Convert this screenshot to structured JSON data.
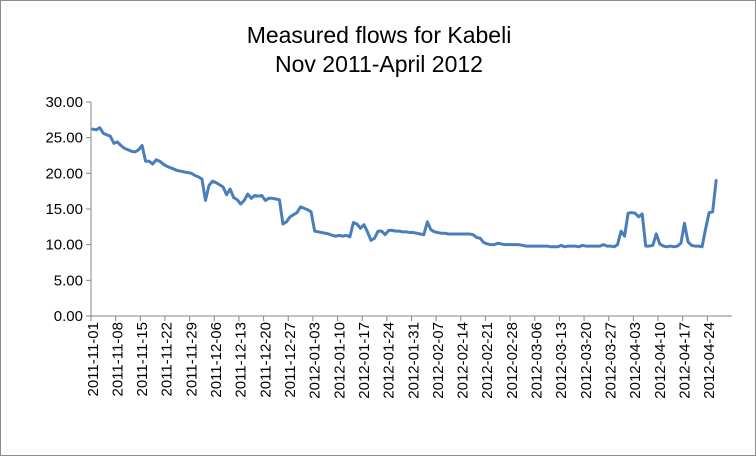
{
  "chart_data": {
    "type": "line",
    "title_line1": "Measured flows for Kabeli",
    "title_line2": "Nov 2011-April 2012",
    "xlabel": "",
    "ylabel": "",
    "ylim": [
      0,
      30
    ],
    "y_ticks": [
      "0.00",
      "5.00",
      "10.00",
      "15.00",
      "20.00",
      "25.00",
      "30.00"
    ],
    "x_start": "2011-11-01",
    "x_end": "2012-04-30",
    "x_ticks": [
      "2011-11-01",
      "2011-11-08",
      "2011-11-15",
      "2011-11-22",
      "2011-11-29",
      "2011-12-06",
      "2011-12-13",
      "2011-12-20",
      "2011-12-27",
      "2012-01-03",
      "2012-01-10",
      "2012-01-17",
      "2012-01-24",
      "2012-01-31",
      "2012-02-07",
      "2012-02-14",
      "2012-02-21",
      "2012-02-28",
      "2012-03-06",
      "2012-03-13",
      "2012-03-20",
      "2012-03-27",
      "2012-04-03",
      "2012-04-10",
      "2012-04-17",
      "2012-04-24"
    ],
    "grid": false,
    "legend": "none",
    "line_color": "#4a7ebb",
    "series": [
      {
        "points": [
          [
            "2011-11-01",
            26.2
          ],
          [
            "2011-11-02",
            26.1
          ],
          [
            "2011-11-03",
            26.4
          ],
          [
            "2011-11-04",
            25.6
          ],
          [
            "2011-11-05",
            25.4
          ],
          [
            "2011-11-06",
            25.2
          ],
          [
            "2011-11-07",
            24.2
          ],
          [
            "2011-11-08",
            24.4
          ],
          [
            "2011-11-09",
            23.9
          ],
          [
            "2011-11-10",
            23.5
          ],
          [
            "2011-11-11",
            23.3
          ],
          [
            "2011-11-12",
            23.1
          ],
          [
            "2011-11-13",
            23.0
          ],
          [
            "2011-11-14",
            23.3
          ],
          [
            "2011-11-15",
            23.9
          ],
          [
            "2011-11-16",
            21.7
          ],
          [
            "2011-11-17",
            21.7
          ],
          [
            "2011-11-18",
            21.3
          ],
          [
            "2011-11-19",
            21.9
          ],
          [
            "2011-11-20",
            21.7
          ],
          [
            "2011-11-21",
            21.3
          ],
          [
            "2011-11-22",
            21.0
          ],
          [
            "2011-11-23",
            20.8
          ],
          [
            "2011-11-24",
            20.6
          ],
          [
            "2011-11-25",
            20.4
          ],
          [
            "2011-11-26",
            20.3
          ],
          [
            "2011-11-27",
            20.2
          ],
          [
            "2011-11-28",
            20.1
          ],
          [
            "2011-11-29",
            20.0
          ],
          [
            "2011-11-30",
            19.7
          ],
          [
            "2011-12-01",
            19.5
          ],
          [
            "2011-12-02",
            19.2
          ],
          [
            "2011-12-03",
            16.2
          ],
          [
            "2011-12-04",
            18.3
          ],
          [
            "2011-12-05",
            18.9
          ],
          [
            "2011-12-06",
            18.7
          ],
          [
            "2011-12-07",
            18.4
          ],
          [
            "2011-12-08",
            18.1
          ],
          [
            "2011-12-09",
            17.0
          ],
          [
            "2011-12-10",
            17.8
          ],
          [
            "2011-12-11",
            16.6
          ],
          [
            "2011-12-12",
            16.3
          ],
          [
            "2011-12-13",
            15.7
          ],
          [
            "2011-12-14",
            16.2
          ],
          [
            "2011-12-15",
            17.1
          ],
          [
            "2011-12-16",
            16.5
          ],
          [
            "2011-12-17",
            16.9
          ],
          [
            "2011-12-18",
            16.8
          ],
          [
            "2011-12-19",
            16.9
          ],
          [
            "2011-12-20",
            16.2
          ],
          [
            "2011-12-21",
            16.5
          ],
          [
            "2011-12-22",
            16.5
          ],
          [
            "2011-12-23",
            16.4
          ],
          [
            "2011-12-24",
            16.3
          ],
          [
            "2011-12-25",
            12.9
          ],
          [
            "2011-12-26",
            13.2
          ],
          [
            "2011-12-27",
            13.9
          ],
          [
            "2011-12-28",
            14.2
          ],
          [
            "2011-12-29",
            14.5
          ],
          [
            "2011-12-30",
            15.3
          ],
          [
            "2011-12-31",
            15.1
          ],
          [
            "2012-01-01",
            14.9
          ],
          [
            "2012-01-02",
            14.6
          ],
          [
            "2012-01-03",
            11.9
          ],
          [
            "2012-01-04",
            11.8
          ],
          [
            "2012-01-05",
            11.7
          ],
          [
            "2012-01-06",
            11.6
          ],
          [
            "2012-01-07",
            11.5
          ],
          [
            "2012-01-08",
            11.3
          ],
          [
            "2012-01-09",
            11.2
          ],
          [
            "2012-01-10",
            11.3
          ],
          [
            "2012-01-11",
            11.2
          ],
          [
            "2012-01-12",
            11.3
          ],
          [
            "2012-01-13",
            11.1
          ],
          [
            "2012-01-14",
            13.1
          ],
          [
            "2012-01-15",
            12.9
          ],
          [
            "2012-01-16",
            12.3
          ],
          [
            "2012-01-17",
            12.8
          ],
          [
            "2012-01-18",
            11.8
          ],
          [
            "2012-01-19",
            10.6
          ],
          [
            "2012-01-20",
            10.9
          ],
          [
            "2012-01-21",
            11.9
          ],
          [
            "2012-01-22",
            11.9
          ],
          [
            "2012-01-23",
            11.4
          ],
          [
            "2012-01-24",
            12.0
          ],
          [
            "2012-01-25",
            12.0
          ],
          [
            "2012-01-26",
            11.9
          ],
          [
            "2012-01-27",
            11.9
          ],
          [
            "2012-01-28",
            11.8
          ],
          [
            "2012-01-29",
            11.8
          ],
          [
            "2012-01-30",
            11.7
          ],
          [
            "2012-01-31",
            11.7
          ],
          [
            "2012-02-01",
            11.6
          ],
          [
            "2012-02-02",
            11.5
          ],
          [
            "2012-02-03",
            11.4
          ],
          [
            "2012-02-04",
            13.2
          ],
          [
            "2012-02-05",
            12.1
          ],
          [
            "2012-02-06",
            11.8
          ],
          [
            "2012-02-07",
            11.7
          ],
          [
            "2012-02-08",
            11.6
          ],
          [
            "2012-02-09",
            11.6
          ],
          [
            "2012-02-10",
            11.5
          ],
          [
            "2012-02-11",
            11.5
          ],
          [
            "2012-02-12",
            11.5
          ],
          [
            "2012-02-13",
            11.5
          ],
          [
            "2012-02-14",
            11.5
          ],
          [
            "2012-02-15",
            11.5
          ],
          [
            "2012-02-16",
            11.5
          ],
          [
            "2012-02-17",
            11.4
          ],
          [
            "2012-02-18",
            11.0
          ],
          [
            "2012-02-19",
            10.9
          ],
          [
            "2012-02-20",
            10.3
          ],
          [
            "2012-02-21",
            10.1
          ],
          [
            "2012-02-22",
            10.0
          ],
          [
            "2012-02-23",
            10.0
          ],
          [
            "2012-02-24",
            10.2
          ],
          [
            "2012-02-25",
            10.1
          ],
          [
            "2012-02-26",
            10.0
          ],
          [
            "2012-02-27",
            10.0
          ],
          [
            "2012-02-28",
            10.0
          ],
          [
            "2012-02-29",
            10.0
          ],
          [
            "2012-03-01",
            10.0
          ],
          [
            "2012-03-02",
            9.9
          ],
          [
            "2012-03-03",
            9.8
          ],
          [
            "2012-03-04",
            9.8
          ],
          [
            "2012-03-05",
            9.8
          ],
          [
            "2012-03-06",
            9.8
          ],
          [
            "2012-03-07",
            9.8
          ],
          [
            "2012-03-08",
            9.8
          ],
          [
            "2012-03-09",
            9.8
          ],
          [
            "2012-03-10",
            9.7
          ],
          [
            "2012-03-11",
            9.7
          ],
          [
            "2012-03-12",
            9.7
          ],
          [
            "2012-03-13",
            9.9
          ],
          [
            "2012-03-14",
            9.7
          ],
          [
            "2012-03-15",
            9.8
          ],
          [
            "2012-03-16",
            9.8
          ],
          [
            "2012-03-17",
            9.8
          ],
          [
            "2012-03-18",
            9.7
          ],
          [
            "2012-03-19",
            9.9
          ],
          [
            "2012-03-20",
            9.8
          ],
          [
            "2012-03-21",
            9.8
          ],
          [
            "2012-03-22",
            9.8
          ],
          [
            "2012-03-23",
            9.8
          ],
          [
            "2012-03-24",
            9.8
          ],
          [
            "2012-03-25",
            10.0
          ],
          [
            "2012-03-26",
            9.8
          ],
          [
            "2012-03-27",
            9.8
          ],
          [
            "2012-03-28",
            9.7
          ],
          [
            "2012-03-29",
            10.0
          ],
          [
            "2012-03-30",
            11.9
          ],
          [
            "2012-03-31",
            11.2
          ],
          [
            "2012-04-01",
            14.4
          ],
          [
            "2012-04-02",
            14.5
          ],
          [
            "2012-04-03",
            14.4
          ],
          [
            "2012-04-04",
            13.9
          ],
          [
            "2012-04-05",
            14.3
          ],
          [
            "2012-04-06",
            9.8
          ],
          [
            "2012-04-07",
            9.8
          ],
          [
            "2012-04-08",
            9.9
          ],
          [
            "2012-04-09",
            11.5
          ],
          [
            "2012-04-10",
            10.1
          ],
          [
            "2012-04-11",
            9.8
          ],
          [
            "2012-04-12",
            9.7
          ],
          [
            "2012-04-13",
            9.8
          ],
          [
            "2012-04-14",
            9.7
          ],
          [
            "2012-04-15",
            9.8
          ],
          [
            "2012-04-16",
            10.2
          ],
          [
            "2012-04-17",
            13.0
          ],
          [
            "2012-04-18",
            10.4
          ],
          [
            "2012-04-19",
            9.9
          ],
          [
            "2012-04-20",
            9.8
          ],
          [
            "2012-04-21",
            9.8
          ],
          [
            "2012-04-22",
            9.7
          ],
          [
            "2012-04-23",
            12.2
          ],
          [
            "2012-04-24",
            14.5
          ],
          [
            "2012-04-25",
            14.6
          ],
          [
            "2012-04-26",
            19.0
          ]
        ]
      }
    ]
  }
}
